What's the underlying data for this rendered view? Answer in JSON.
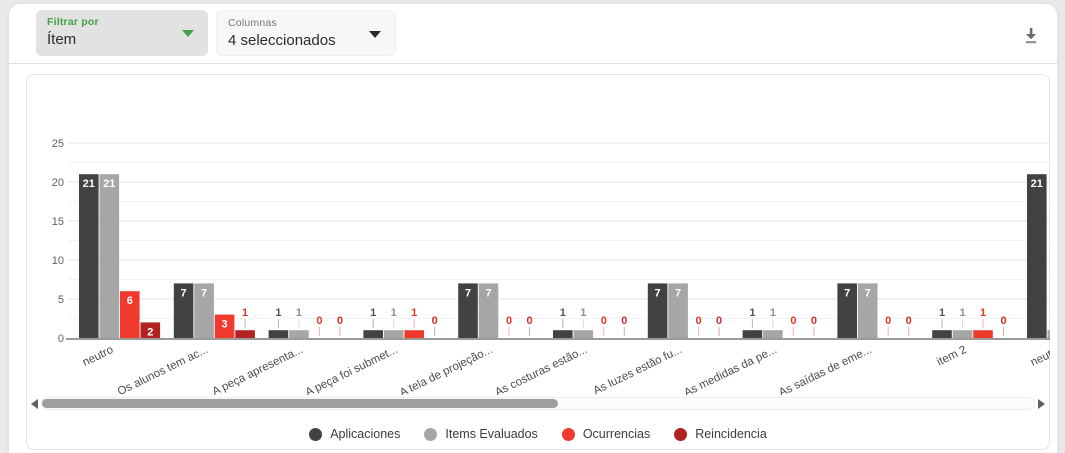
{
  "toolbar": {
    "filter_by": {
      "label": "Filtrar por",
      "value": "Ítem"
    },
    "columns": {
      "label": "Columnas",
      "value": "4 seleccionados"
    }
  },
  "colors": {
    "accent_green": "#43a047",
    "axis_text": "#616161",
    "category_text": "#4c4c4c",
    "baseline": "#9a9a9a",
    "grid_major": "#e3e3e3",
    "grid_minor": "#f3f3f3",
    "scroll_thumb": "#9e9e9e"
  },
  "scrollbar": {
    "thumb_start_pct": 0,
    "thumb_width_pct": 52
  },
  "chart_data": {
    "type": "bar",
    "title": "",
    "xlabel": "",
    "ylabel": "",
    "ylim": [
      0,
      25
    ],
    "yticks": [
      0,
      5,
      10,
      15,
      20,
      25
    ],
    "grid": true,
    "legend_position": "bottom",
    "categories": [
      "neutro",
      "Os alunos tem ac...",
      "A peça apresenta...",
      "A peça foi submet...",
      "A tela de projeção...",
      "As costuras estão...",
      "As luzes estão fu...",
      "As medidas da pe...",
      "As saídas de eme...",
      "item 2",
      "neutro"
    ],
    "series": [
      {
        "name": "Aplicaciones",
        "color": "#424242",
        "label_color": "#545454",
        "values": [
          21,
          7,
          1,
          1,
          7,
          1,
          7,
          1,
          7,
          1,
          21
        ]
      },
      {
        "name": "Items Evaluados",
        "color": "#a6a6a6",
        "label_color": "#8f8f8f",
        "values": [
          21,
          7,
          1,
          1,
          7,
          1,
          7,
          1,
          7,
          1,
          1
        ]
      },
      {
        "name": "Ocurrencias",
        "color": "#f03a2e",
        "label_color": "#e5372c",
        "values": [
          6,
          3,
          0,
          1,
          0,
          0,
          0,
          0,
          0,
          1,
          null
        ]
      },
      {
        "name": "Reincidencia",
        "color": "#b32222",
        "label_color": "#d32f2f",
        "values": [
          2,
          1,
          0,
          0,
          0,
          0,
          0,
          0,
          0,
          0,
          null
        ]
      }
    ]
  }
}
